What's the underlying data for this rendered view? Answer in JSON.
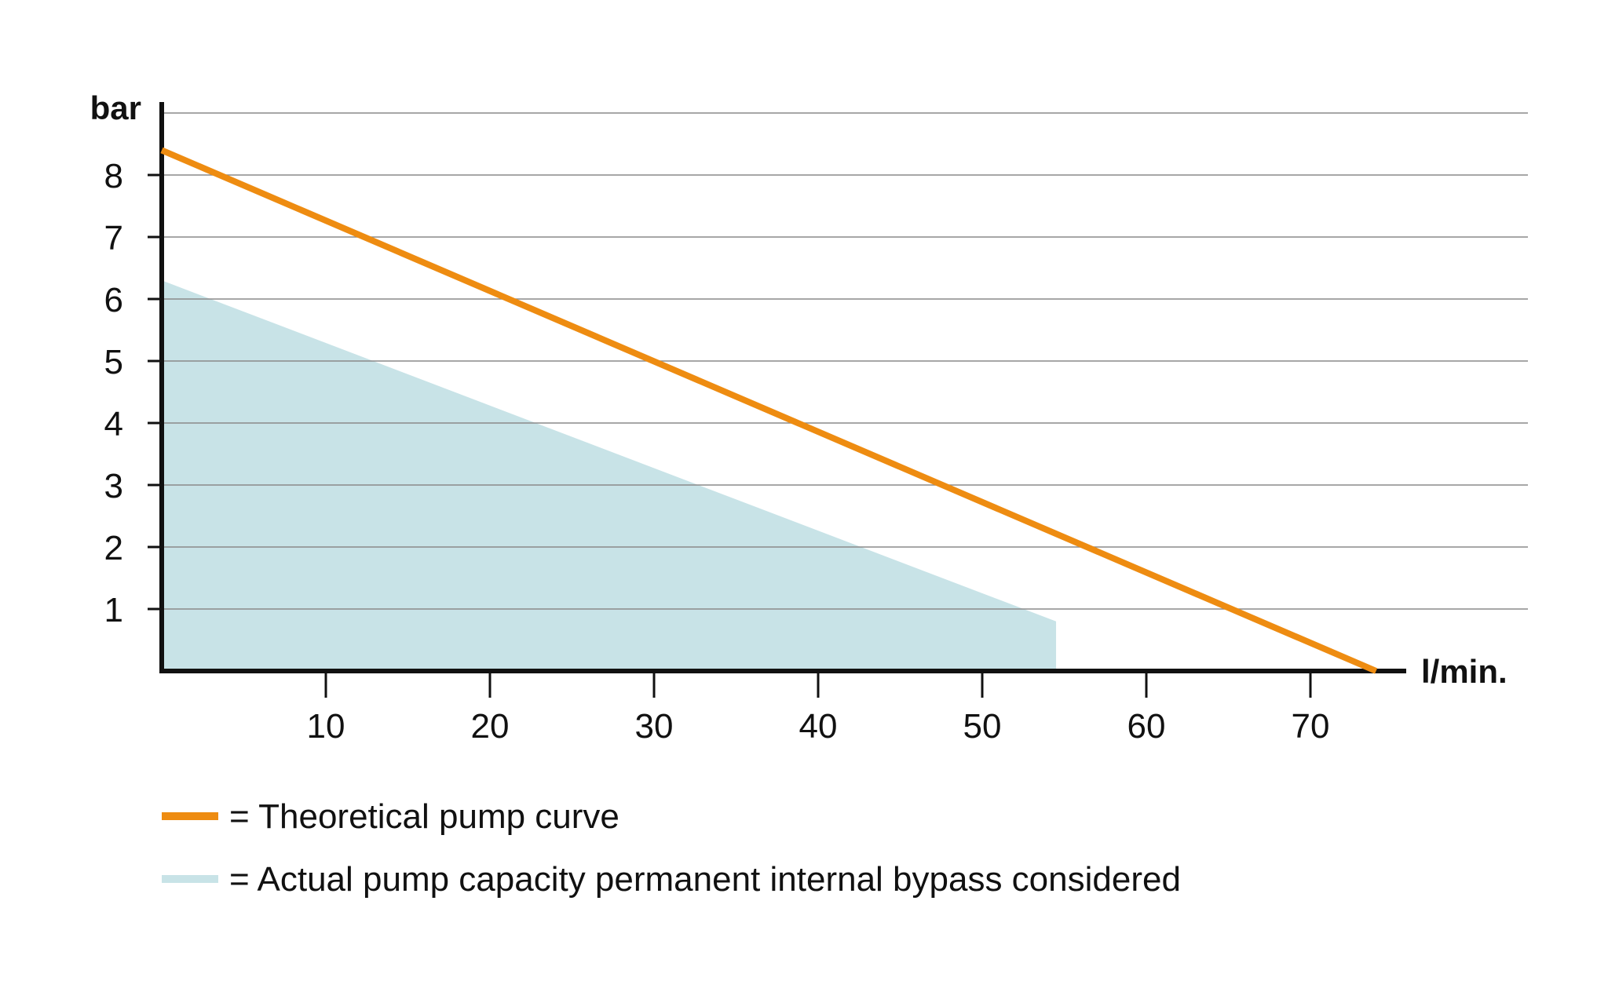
{
  "chart_data": {
    "type": "line",
    "title": "",
    "ylabel": "bar",
    "xlabel": "l/min.",
    "xlim": [
      0,
      75
    ],
    "ylim": [
      0,
      9
    ],
    "x_ticks": [
      10,
      20,
      30,
      40,
      50,
      60,
      70
    ],
    "y_ticks": [
      1,
      2,
      3,
      4,
      5,
      6,
      7,
      8
    ],
    "grid": true,
    "legend_position": "bottom-left",
    "series": [
      {
        "name": "= Theoretical pump curve",
        "kind": "line",
        "color": "#EE8C11",
        "x": [
          0,
          74
        ],
        "y": [
          8.4,
          0
        ]
      },
      {
        "name": "= Actual pump capacity permanent internal bypass considered",
        "kind": "area",
        "color": "#C8E3E7",
        "x": [
          0,
          54.5
        ],
        "y": [
          6.3,
          0.8
        ]
      }
    ]
  }
}
